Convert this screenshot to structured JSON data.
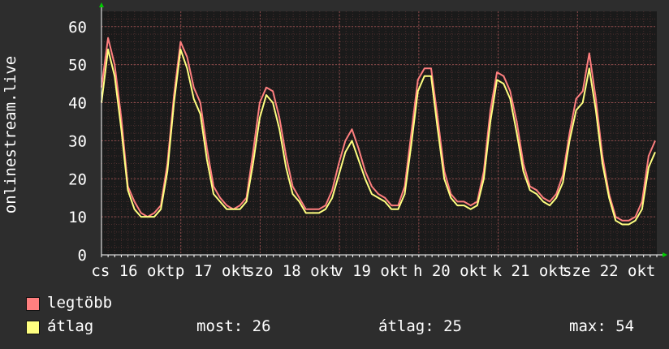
{
  "chart_data": {
    "type": "line",
    "ylabel": "onlinestream.live",
    "ylim": [
      0,
      64
    ],
    "yticks": [
      0,
      10,
      20,
      30,
      40,
      50,
      60
    ],
    "grid": true,
    "x_labels": [
      "cs 16 okt",
      "p 17 okt",
      "szo 18 okt",
      "v 19 okt",
      "h 20 okt",
      "k 21 okt",
      "sze 22 okt"
    ],
    "series": [
      {
        "name": "legtöbb",
        "color": "#ff7f7f",
        "values": [
          44,
          57,
          50,
          36,
          18,
          14,
          11,
          10,
          11,
          13,
          24,
          42,
          56,
          52,
          44,
          40,
          28,
          18,
          15,
          13,
          12,
          13,
          15,
          27,
          40,
          44,
          43,
          36,
          26,
          18,
          15,
          12,
          12,
          12,
          13,
          17,
          24,
          30,
          33,
          28,
          22,
          18,
          16,
          15,
          13,
          13,
          18,
          32,
          46,
          49,
          49,
          36,
          22,
          16,
          14,
          14,
          13,
          14,
          22,
          38,
          48,
          47,
          43,
          35,
          24,
          18,
          17,
          15,
          14,
          16,
          21,
          32,
          41,
          43,
          53,
          41,
          26,
          16,
          10,
          9,
          9,
          10,
          14,
          26,
          30
        ]
      },
      {
        "name": "átlag",
        "color": "#ffff80",
        "values": [
          40,
          54,
          47,
          33,
          17,
          12,
          10,
          10,
          10,
          12,
          22,
          40,
          54,
          49,
          41,
          37,
          25,
          16,
          14,
          12,
          12,
          12,
          14,
          24,
          36,
          42,
          40,
          33,
          23,
          16,
          14,
          11,
          11,
          11,
          12,
          15,
          21,
          27,
          30,
          25,
          20,
          16,
          15,
          14,
          12,
          12,
          16,
          29,
          43,
          47,
          47,
          33,
          20,
          15,
          13,
          13,
          12,
          13,
          20,
          35,
          46,
          45,
          41,
          32,
          22,
          17,
          16,
          14,
          13,
          15,
          19,
          30,
          38,
          40,
          49,
          38,
          24,
          15,
          9,
          8,
          8,
          9,
          12,
          23,
          27
        ]
      }
    ]
  },
  "legend": {
    "max_label": "legtöbb",
    "avg_label": "átlag",
    "stats": {
      "now": "most: 26",
      "average": "átlag: 25",
      "max": "max: 54"
    }
  },
  "colors": {
    "background": "#2d2d2d",
    "plot_background": "#1a1a1a",
    "grid": "#5a3a3a",
    "axis": "#ffffff",
    "arrow": "#00cc00"
  }
}
